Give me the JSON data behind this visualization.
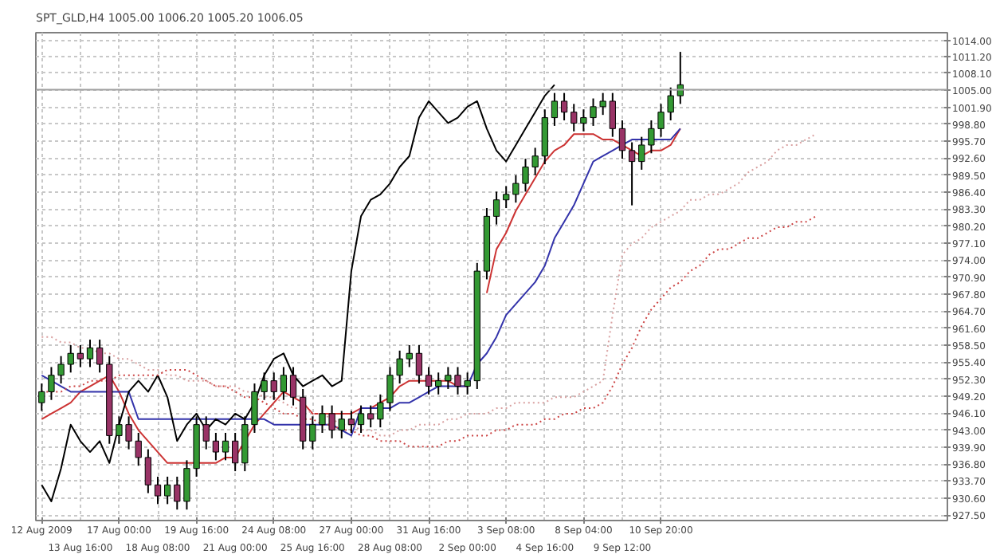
{
  "chart_data": {
    "type": "candlestick",
    "title": "SPT_GLD,H4  1005.00 1006.20 1005.20 1006.05",
    "categories": [
      "12 Aug 2009",
      null,
      null,
      null,
      "13 Aug 16:00",
      null,
      null,
      null,
      "17 Aug 00:00",
      null,
      null,
      null,
      "18 Aug 08:00",
      null,
      null,
      null,
      "19 Aug 16:00",
      null,
      null,
      null,
      "21 Aug 00:00",
      null,
      null,
      null,
      "24 Aug 08:00",
      null,
      null,
      null,
      "25 Aug 16:00",
      null,
      null,
      null,
      "27 Aug 00:00",
      null,
      null,
      null,
      "28 Aug 08:00",
      null,
      null,
      null,
      "31 Aug 16:00",
      null,
      null,
      null,
      "2 Sep 00:00",
      null,
      null,
      null,
      "3 Sep 08:00",
      null,
      null,
      null,
      "4 Sep 16:00",
      null,
      null,
      null,
      "8 Sep 04:00",
      null,
      null,
      null,
      "9 Sep 12:00",
      null,
      null,
      null,
      "10 Sep 20:00",
      null,
      null,
      null,
      null,
      null,
      null,
      null,
      null,
      null,
      null,
      null,
      null,
      null,
      null,
      null,
      null,
      null,
      null,
      null,
      null,
      null,
      null,
      null,
      null,
      null,
      null,
      null,
      null,
      null
    ],
    "ohlc": [
      [
        948,
        951.5,
        946.5,
        950
      ],
      [
        950,
        954.5,
        948.5,
        953
      ],
      [
        953,
        956.5,
        951.5,
        955
      ],
      [
        955,
        958.5,
        953.5,
        957
      ],
      [
        957,
        958.5,
        954.5,
        956
      ],
      [
        956,
        959.5,
        954.5,
        958
      ],
      [
        958,
        959.5,
        953.5,
        955
      ],
      [
        955,
        956.5,
        940.5,
        942
      ],
      [
        942,
        945.5,
        940.5,
        944
      ],
      [
        944,
        945.5,
        939.5,
        941
      ],
      [
        941,
        942.5,
        936.5,
        938
      ],
      [
        938,
        939.5,
        931.5,
        933
      ],
      [
        933,
        934.5,
        929.5,
        931
      ],
      [
        931,
        934.5,
        929.5,
        933
      ],
      [
        933,
        934.5,
        928.5,
        930
      ],
      [
        930,
        937.5,
        928.5,
        936
      ],
      [
        936,
        945.5,
        934.5,
        944
      ],
      [
        944,
        945.5,
        939.5,
        941
      ],
      [
        941,
        942.5,
        937.5,
        939
      ],
      [
        939,
        942.5,
        937.5,
        941
      ],
      [
        941,
        942.5,
        935.5,
        937
      ],
      [
        937,
        945.5,
        935.5,
        944
      ],
      [
        944,
        951.5,
        942.5,
        950
      ],
      [
        950,
        953.5,
        948.5,
        952
      ],
      [
        952,
        953.5,
        948.5,
        950
      ],
      [
        950,
        954.5,
        948.5,
        953
      ],
      [
        953,
        954.5,
        947.5,
        949
      ],
      [
        949,
        950.5,
        939.5,
        941
      ],
      [
        941,
        945.5,
        939.5,
        944
      ],
      [
        944,
        947.5,
        942.5,
        946
      ],
      [
        946,
        947.5,
        941.5,
        943
      ],
      [
        943,
        946.5,
        941.5,
        945
      ],
      [
        945,
        946.5,
        942.5,
        944
      ],
      [
        944,
        947.5,
        942.5,
        946
      ],
      [
        946,
        947.5,
        943.5,
        945
      ],
      [
        945,
        949.5,
        943.5,
        948
      ],
      [
        948,
        954.5,
        946.5,
        953
      ],
      [
        953,
        957.5,
        951.5,
        956
      ],
      [
        956,
        958.5,
        954.5,
        957
      ],
      [
        957,
        958.5,
        951.5,
        953
      ],
      [
        953,
        954.5,
        949.5,
        951
      ],
      [
        951,
        953.5,
        949.5,
        952
      ],
      [
        952,
        954.5,
        950.5,
        953
      ],
      [
        953,
        954.5,
        949.5,
        951
      ],
      [
        951,
        953.5,
        949.5,
        952
      ],
      [
        952,
        973.5,
        950.5,
        972
      ],
      [
        972,
        983.5,
        970.5,
        982
      ],
      [
        982,
        986.5,
        980.5,
        985
      ],
      [
        985,
        987.5,
        983.5,
        986
      ],
      [
        986,
        989.5,
        984.5,
        988
      ],
      [
        988,
        992.5,
        986.5,
        991
      ],
      [
        991,
        994.5,
        989.5,
        993
      ],
      [
        993,
        1001.5,
        991.5,
        1000
      ],
      [
        1000,
        1004.5,
        998.5,
        1003
      ],
      [
        1003,
        1004.5,
        999.5,
        1001
      ],
      [
        1001,
        1002.5,
        997.5,
        999
      ],
      [
        999,
        1001.5,
        997.5,
        1000
      ],
      [
        1000,
        1003.5,
        998.5,
        1002
      ],
      [
        1002,
        1004.5,
        1000.5,
        1003
      ],
      [
        1003,
        1004.5,
        996.5,
        998
      ],
      [
        998,
        999.5,
        992.5,
        994
      ],
      [
        994,
        995.5,
        984,
        992
      ],
      [
        992,
        996.5,
        990.5,
        995
      ],
      [
        995,
        999.5,
        993.5,
        998
      ],
      [
        998,
        1002.5,
        996.5,
        1001
      ],
      [
        1001,
        1005.5,
        999.5,
        1004
      ],
      [
        1004,
        1012,
        1002.5,
        1006
      ],
      null,
      null,
      null,
      null,
      null,
      null,
      null,
      null,
      null,
      null,
      null,
      null,
      null,
      null,
      null,
      null,
      null,
      null,
      null,
      null,
      null,
      null,
      null,
      null,
      null,
      null,
      null
    ],
    "colors": [
      "#339933",
      "#339933",
      "#339933",
      "#339933",
      "#993366",
      "#339933",
      "#993366",
      "#993366",
      "#339933",
      "#993366",
      "#993366",
      "#993366",
      "#993366",
      "#339933",
      "#993366",
      "#339933",
      "#339933",
      "#993366",
      "#993366",
      "#339933",
      "#993366",
      "#339933",
      "#339933",
      "#339933",
      "#993366",
      "#339933",
      "#993366",
      "#993366",
      "#339933",
      "#339933",
      "#993366",
      "#339933",
      "#993366",
      "#339933",
      "#993366",
      "#339933",
      "#339933",
      "#339933",
      "#339933",
      "#993366",
      "#993366",
      "#339933",
      "#339933",
      "#993366",
      "#339933",
      "#339933",
      "#339933",
      "#339933",
      "#339933",
      "#339933",
      "#339933",
      "#339933",
      "#339933",
      "#339933",
      "#993366",
      "#993366",
      "#339933",
      "#339933",
      "#339933",
      "#993366",
      "#993366",
      "#993366",
      "#339933",
      "#339933",
      "#339933",
      "#339933",
      "#339933",
      null,
      null,
      null,
      null,
      null,
      null,
      null,
      null,
      null,
      null,
      null,
      null,
      null,
      null,
      null,
      null,
      null,
      null,
      null,
      null,
      null,
      null,
      null,
      null,
      null,
      null,
      null
    ],
    "series": [
      {
        "type": "line",
        "color": "#cc3333",
        "line_style": "solid",
        "values": [
          945,
          946,
          947,
          948,
          950,
          951,
          952,
          953,
          950,
          946,
          943,
          941,
          939,
          937,
          937,
          937,
          937,
          937,
          937,
          938,
          938,
          941,
          944,
          946,
          948,
          950,
          949,
          948,
          946,
          946,
          946,
          946,
          946,
          947,
          947,
          948,
          949,
          951,
          952,
          952,
          952,
          952,
          952,
          951,
          951,
          null,
          968,
          976,
          979,
          983,
          986,
          989,
          992,
          994,
          995,
          997,
          997,
          997,
          996,
          996,
          995,
          994,
          993,
          994,
          994,
          995,
          998,
          null,
          null,
          null,
          null,
          null,
          null,
          null,
          null,
          null,
          null,
          null,
          null,
          null,
          null,
          null,
          null,
          null,
          null,
          null,
          null,
          null,
          null,
          null,
          null,
          null,
          null,
          null
        ]
      },
      {
        "type": "line",
        "color": "#3333aa",
        "line_style": "solid",
        "values": [
          953,
          952,
          951,
          950,
          950,
          950,
          950,
          950,
          950,
          950,
          945,
          945,
          945,
          945,
          945,
          945,
          945,
          945,
          945,
          945,
          945,
          945,
          945,
          945,
          944,
          944,
          944,
          944,
          944,
          944,
          944,
          943,
          942,
          947,
          947,
          947,
          947,
          948,
          948,
          949,
          950,
          951,
          951,
          951,
          951,
          955,
          957,
          960,
          964,
          966,
          968,
          970,
          973,
          978,
          981,
          984,
          988,
          992,
          993,
          994,
          995,
          996,
          996,
          996,
          996,
          996,
          998,
          null,
          null,
          null,
          null,
          null,
          null,
          null,
          null,
          null,
          null,
          null,
          null,
          null,
          null,
          null,
          null,
          null,
          null,
          null,
          null,
          null,
          null,
          null,
          null,
          null,
          null,
          null
        ]
      },
      {
        "type": "line",
        "color": "#000000",
        "line_style": "solid",
        "values": [
          933,
          930,
          936,
          944,
          941,
          939,
          941,
          937,
          944,
          950,
          952,
          950,
          953,
          949,
          941,
          944,
          946,
          943,
          945,
          944,
          946,
          945,
          948,
          953,
          956,
          957,
          953,
          951,
          952,
          953,
          951,
          952,
          972,
          982,
          985,
          986,
          988,
          991,
          993,
          1000,
          1003,
          1001,
          999,
          1000,
          1002,
          1003,
          998,
          994,
          992,
          995,
          998,
          1001,
          1004,
          1006,
          null,
          null,
          null,
          null,
          null,
          null,
          null,
          null,
          null,
          null,
          null,
          null,
          null,
          null,
          null,
          null,
          null,
          null,
          null,
          null,
          null,
          null,
          null,
          null,
          null,
          null,
          null,
          null,
          null,
          null,
          null,
          null,
          null,
          null,
          null,
          null,
          null,
          null,
          null,
          null
        ]
      },
      {
        "type": "line",
        "color": "#d9a0a0",
        "line_style": "dotted",
        "values": [
          960,
          960,
          959,
          959,
          958,
          958,
          957,
          957,
          956,
          956,
          955,
          954,
          954,
          953,
          953,
          952,
          952,
          952,
          951,
          951,
          951,
          950,
          950,
          949,
          949,
          948,
          947,
          947,
          946,
          946,
          945,
          944,
          944,
          943,
          943,
          942,
          942,
          943,
          943,
          944,
          944,
          944,
          945,
          945,
          946,
          946,
          946,
          947,
          947,
          948,
          948,
          948,
          948,
          949,
          949,
          949,
          950,
          951,
          952,
          964,
          975,
          977,
          978,
          980,
          981,
          982,
          983,
          985,
          985,
          986,
          986,
          987,
          988,
          990,
          991,
          992,
          994,
          995,
          995,
          996,
          997,
          null,
          null,
          null,
          null,
          null,
          null,
          null,
          null,
          null,
          null,
          null,
          null,
          null
        ]
      },
      {
        "type": "line",
        "color": "#cc4444",
        "line_style": "dotted",
        "values": [
          950,
          950,
          950,
          951,
          951,
          952,
          952,
          952,
          953,
          953,
          953,
          953,
          953,
          954,
          954,
          954,
          953,
          952,
          951,
          951,
          950,
          949,
          949,
          948,
          947,
          946,
          946,
          945,
          945,
          944,
          944,
          943,
          943,
          942,
          942,
          941,
          941,
          941,
          940,
          940,
          940,
          940,
          941,
          941,
          942,
          942,
          942,
          943,
          943,
          944,
          944,
          944,
          945,
          945,
          946,
          946,
          947,
          947,
          948,
          951,
          955,
          958,
          962,
          965,
          967,
          969,
          970,
          972,
          973,
          975,
          976,
          976,
          977,
          978,
          978,
          979,
          980,
          980,
          981,
          981,
          982,
          null,
          null,
          null,
          null,
          null,
          null,
          null,
          null,
          null,
          null,
          null,
          null,
          null
        ]
      }
    ],
    "ref_lines": [
      {
        "axis": "y",
        "value": 1005.1,
        "color": "#a0a0a0",
        "line_style": "solid"
      }
    ],
    "ylim": [
      926.5,
      1015.5
    ],
    "yticks": [
      {
        "value": 927.5,
        "label": "927.50"
      },
      {
        "value": 930.6,
        "label": "930.60"
      },
      {
        "value": 933.7,
        "label": "933.70"
      },
      {
        "value": 936.8,
        "label": "936.80"
      },
      {
        "value": 939.9,
        "label": "939.90"
      },
      {
        "value": 943.0,
        "label": "943.00"
      },
      {
        "value": 946.1,
        "label": "946.10"
      },
      {
        "value": 949.2,
        "label": "949.20"
      },
      {
        "value": 952.3,
        "label": "952.30"
      },
      {
        "value": 955.4,
        "label": "955.40"
      },
      {
        "value": 958.5,
        "label": "958.50"
      },
      {
        "value": 961.6,
        "label": "961.60"
      },
      {
        "value": 964.7,
        "label": "964.70"
      },
      {
        "value": 967.8,
        "label": "967.80"
      },
      {
        "value": 970.9,
        "label": "970.90"
      },
      {
        "value": 974.0,
        "label": "974.00"
      },
      {
        "value": 977.1,
        "label": "977.10"
      },
      {
        "value": 980.2,
        "label": "980.20"
      },
      {
        "value": 983.3,
        "label": "983.30"
      },
      {
        "value": 986.4,
        "label": "986.40"
      },
      {
        "value": 989.5,
        "label": "989.50"
      },
      {
        "value": 992.6,
        "label": "992.60"
      },
      {
        "value": 995.7,
        "label": "995.70"
      },
      {
        "value": 998.8,
        "label": "998.80"
      },
      {
        "value": 1001.9,
        "label": "1001.90"
      },
      {
        "value": 1005.0,
        "label": "1005.00"
      },
      {
        "value": 1008.1,
        "label": "1008.10"
      },
      {
        "value": 1011.2,
        "label": "1011.20"
      },
      {
        "value": 1014.0,
        "label": "1014.00"
      }
    ],
    "grid": true
  }
}
